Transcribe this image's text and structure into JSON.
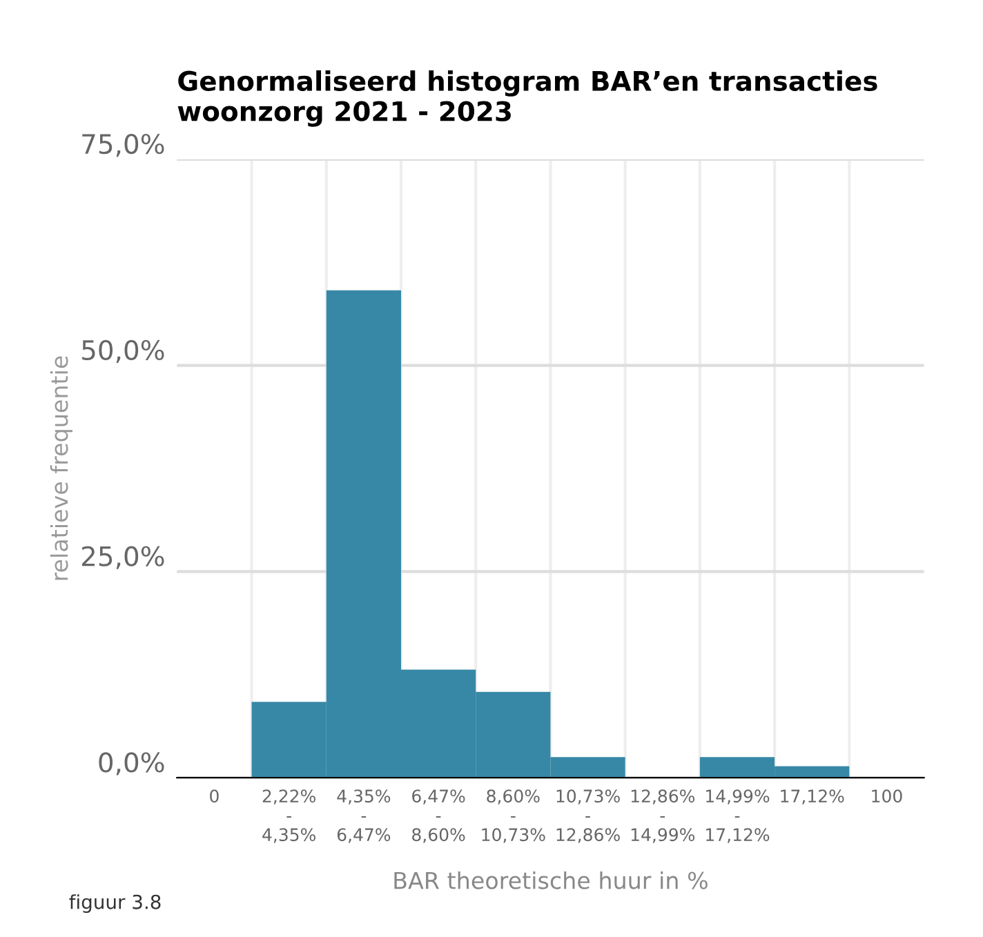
{
  "chart_data": {
    "type": "bar",
    "title": "Genormaliseerd histogram BAR’en transacties\nwoonzorg 2021 - 2023",
    "xlabel": "BAR theoretische huur in %",
    "ylabel": "relatieve frequentie",
    "annotations": [
      "figuur 3.8"
    ],
    "categories": [
      "0",
      "2,22%\n-\n4,35%",
      "4,35%\n-\n6,47%",
      "6,47%\n-\n8,60%",
      "8,60%\n-\n10,73%",
      "10,73%\n-\n12,86%",
      "12,86%\n-\n14,99%",
      "14,99%\n-\n17,12%",
      "17,12%",
      "100"
    ],
    "values": [
      null,
      9.2,
      59.1,
      13.1,
      10.4,
      2.5,
      0,
      2.5,
      1.4,
      null
    ],
    "color": "#3688a6",
    "ylim": [
      0,
      75
    ],
    "yticks": [
      {
        "value": 0,
        "label": "0,0%"
      },
      {
        "value": 25,
        "label": "25,0%"
      },
      {
        "value": 50,
        "label": "50,0%"
      },
      {
        "value": 75,
        "label": "75,0%"
      }
    ],
    "grid": true
  }
}
